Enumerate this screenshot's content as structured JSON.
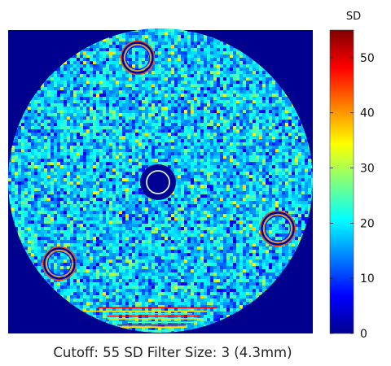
{
  "chart_data": {
    "type": "heatmap",
    "title": "",
    "caption": "Cutoff: 55 SD Filter Size: 3 (4.3mm)",
    "colorbar": {
      "label": "SD",
      "min": 0,
      "max": 55,
      "ticks": [
        0,
        10,
        20,
        30,
        40,
        50
      ],
      "colormap": "jet",
      "placement": "right"
    },
    "grid": false,
    "background_color": "#00008f",
    "dominant_value_range": [
      15,
      25
    ],
    "features": [
      {
        "name": "center-insert",
        "position": "center",
        "description": "dark ring with light edge"
      },
      {
        "name": "ring-top",
        "position": "top-center"
      },
      {
        "name": "ring-right",
        "position": "right"
      },
      {
        "name": "ring-bottom-left",
        "position": "bottom-left"
      },
      {
        "name": "bottom-streaks",
        "position": "bottom-edge",
        "description": "high-SD horizontal streaks"
      }
    ]
  }
}
